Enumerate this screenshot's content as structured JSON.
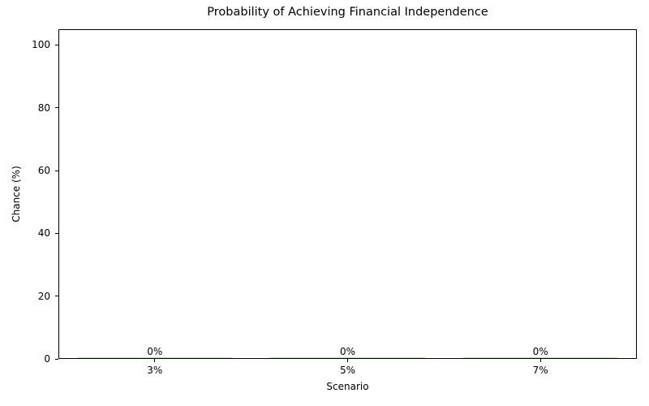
{
  "chart_data": {
    "type": "bar",
    "title": "Probability of Achieving Financial Independence",
    "xlabel": "Scenario",
    "ylabel": "Chance (%)",
    "categories": [
      "3%",
      "5%",
      "7%"
    ],
    "values": [
      0,
      0,
      0
    ],
    "bar_labels": [
      "0%",
      "0%",
      "0%"
    ],
    "yticks": [
      0,
      20,
      40,
      60,
      80,
      100
    ],
    "ylim": [
      0,
      105
    ],
    "bar_width_fraction": 0.8,
    "grid": false,
    "legend": null,
    "bar_color": "#8fbc8f",
    "axis_color": "#000000",
    "text_color": "#000000",
    "background_color": "#ffffff"
  }
}
